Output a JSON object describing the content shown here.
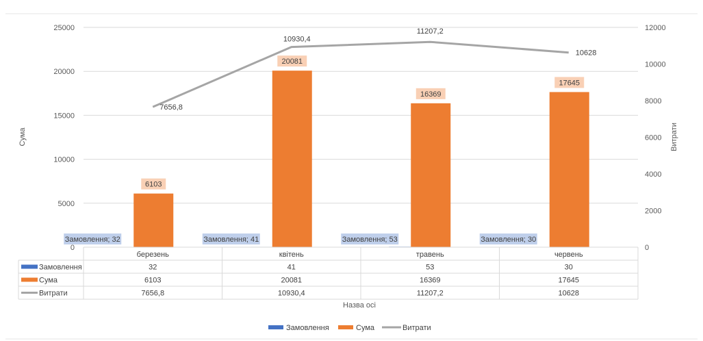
{
  "chart_data": {
    "type": "bar",
    "categories": [
      "березень",
      "квітень",
      "травень",
      "червень"
    ],
    "series": [
      {
        "name": "Замовлення",
        "type": "bar",
        "axis": "left",
        "values": [
          32,
          41,
          53,
          30
        ],
        "color": "#4472C4",
        "data_labels": [
          "Замовлення; 32",
          "Замовлення; 41",
          "Замовлення; 53",
          "Замовлення; 30"
        ]
      },
      {
        "name": "Сума",
        "type": "bar",
        "axis": "left",
        "values": [
          6103,
          20081,
          16369,
          17645
        ],
        "color": "#ED7D31",
        "data_labels": [
          "6103",
          "20081",
          "16369",
          "17645"
        ]
      },
      {
        "name": "Витрати",
        "type": "line",
        "axis": "right",
        "values": [
          7656.8,
          10930.4,
          11207.2,
          10628
        ],
        "color": "#A5A5A5",
        "data_labels": [
          "7656,8",
          "10930,4",
          "11207,2",
          "10628"
        ]
      }
    ],
    "xlabel": "Назва осі",
    "ylabel": "Сума",
    "y2label": "Витрати",
    "ylim": [
      0,
      25000
    ],
    "y2lim": [
      0,
      12000
    ],
    "yticks": [
      "0",
      "5000",
      "10000",
      "15000",
      "20000",
      "25000"
    ],
    "y2ticks": [
      "0",
      "2000",
      "4000",
      "6000",
      "8000",
      "10000",
      "12000"
    ],
    "data_table": {
      "rows": [
        {
          "label": "Замовлення",
          "cells": [
            "32",
            "41",
            "53",
            "30"
          ]
        },
        {
          "label": "Сума",
          "cells": [
            "6103",
            "20081",
            "16369",
            "17645"
          ]
        },
        {
          "label": "Витрати",
          "cells": [
            "7656,8",
            "10930,4",
            "11207,2",
            "10628"
          ]
        }
      ]
    },
    "legend": {
      "position": "bottom",
      "items": [
        "Замовлення",
        "Сума",
        "Витрати"
      ]
    },
    "grid": true
  }
}
